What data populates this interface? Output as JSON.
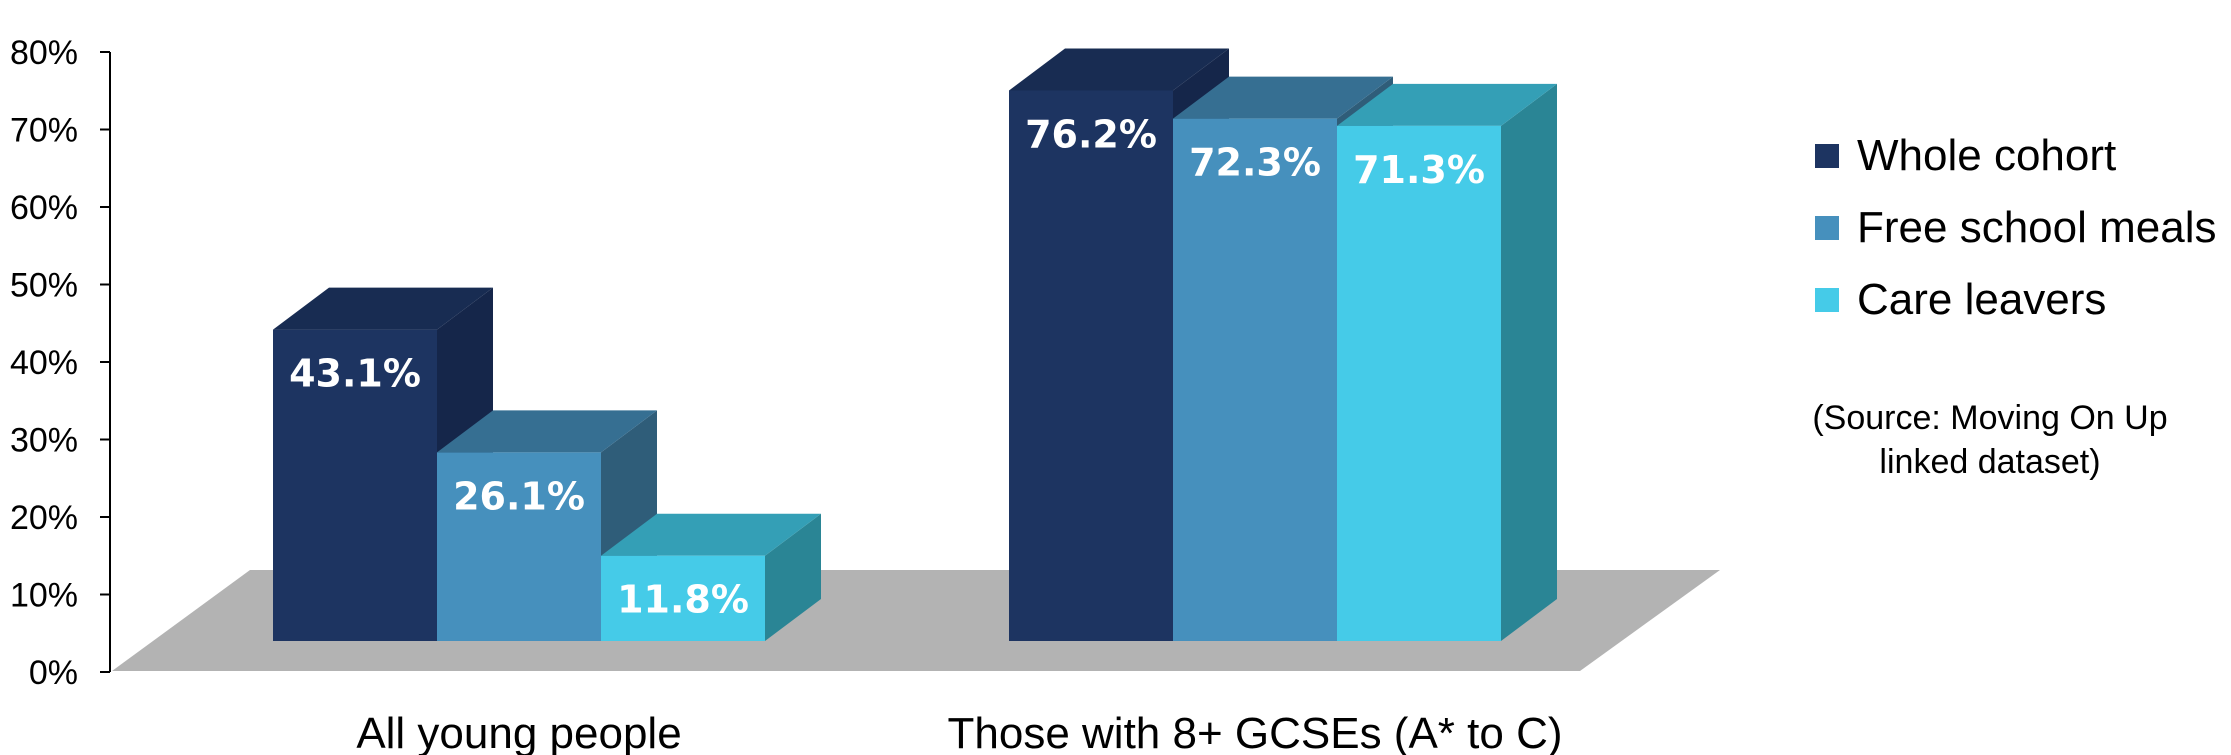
{
  "chart_data": {
    "type": "bar",
    "categories": [
      "All young people",
      "Those with 8+ GCSEs (A* to C)"
    ],
    "series": [
      {
        "name": "Whole cohort",
        "values": [
          43.1,
          76.2
        ],
        "labels": [
          "43.1%",
          "76.2%"
        ]
      },
      {
        "name": "Free school meals",
        "values": [
          26.1,
          72.3
        ],
        "labels": [
          "26.1%",
          "72.3%"
        ]
      },
      {
        "name": "Care leavers",
        "values": [
          11.8,
          71.3
        ],
        "labels": [
          "11.8%",
          "71.3%"
        ]
      }
    ],
    "ylim": [
      0,
      80
    ],
    "yticks": [
      "0%",
      "10%",
      "20%",
      "30%",
      "40%",
      "50%",
      "60%",
      "70%",
      "80%"
    ],
    "legend_position": "right",
    "note": "(Source: Moving On Up linked dataset)"
  },
  "colors": {
    "series": [
      {
        "front": "#1d3461",
        "side": "#15264a",
        "top": "#182c52"
      },
      {
        "front": "#4690bd",
        "side": "#2f5d79",
        "top": "#366f92"
      },
      {
        "front": "#45cbe8",
        "side": "#2a8595",
        "top": "#349fb6"
      }
    ],
    "floor": "#b3b3b3",
    "axis": "#000000"
  }
}
